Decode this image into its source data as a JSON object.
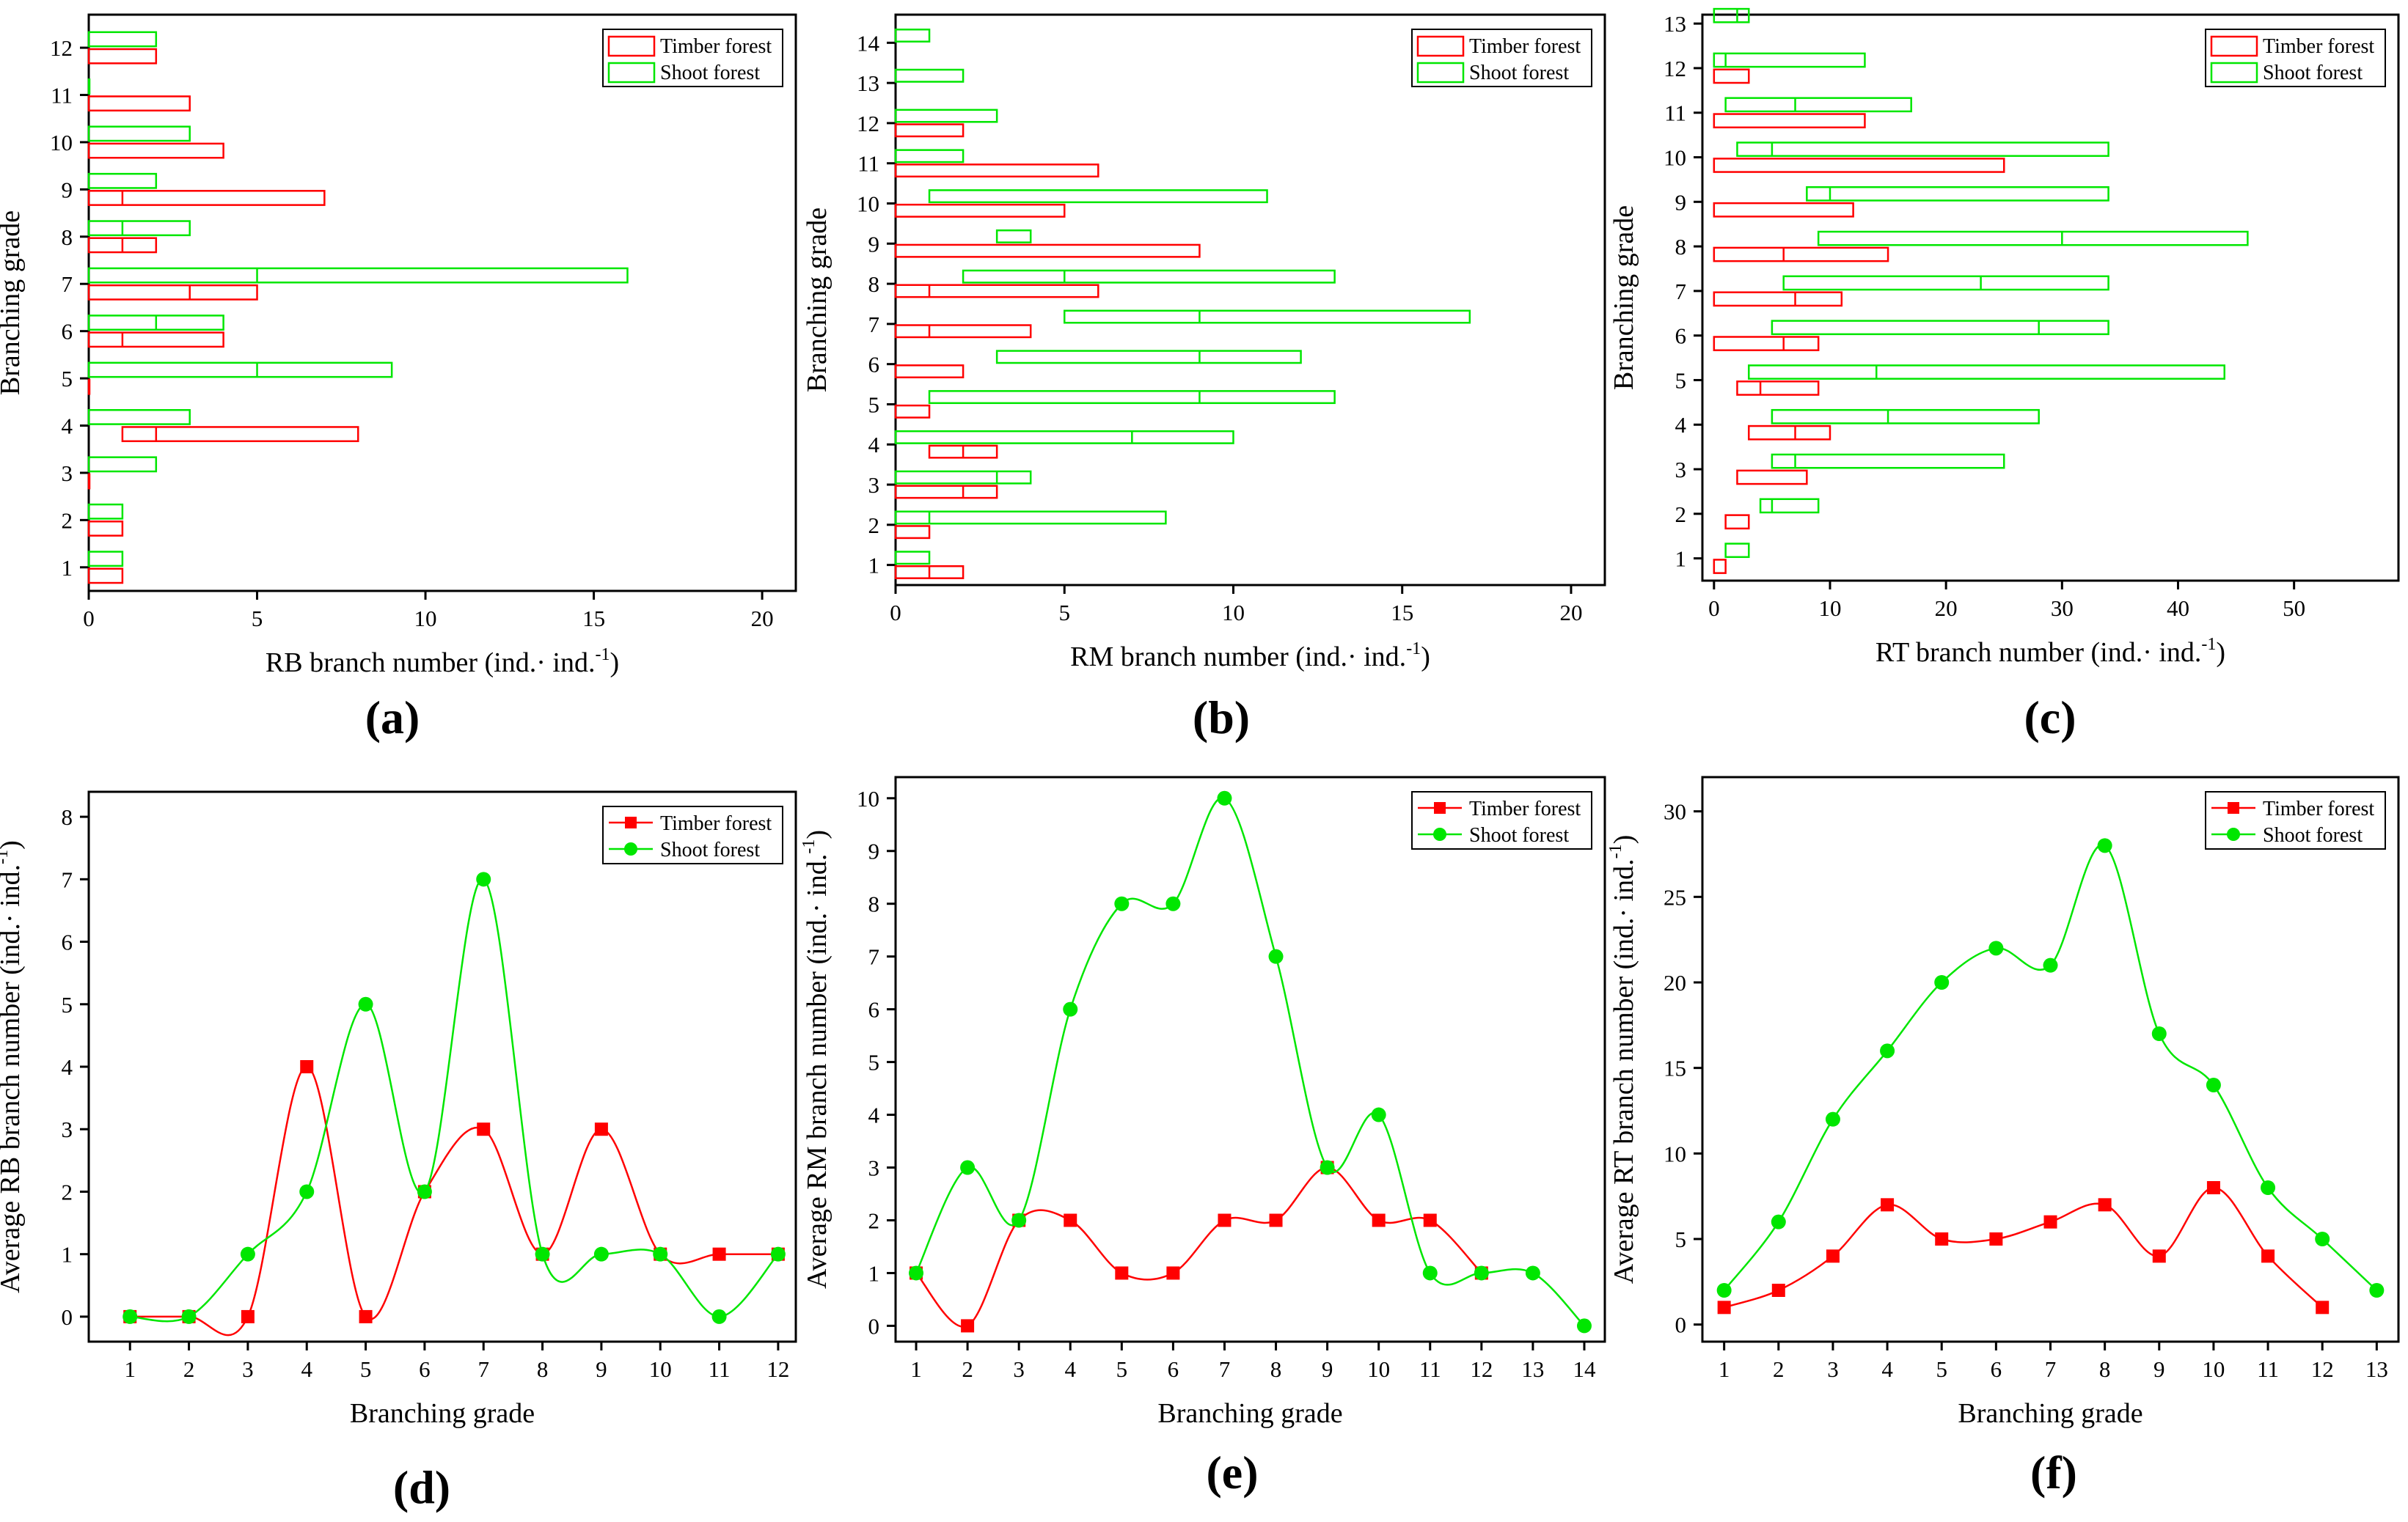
{
  "colors": {
    "timber": "#ff0000",
    "shoot": "#00e600",
    "axis": "#000000"
  },
  "chart_data": [
    {
      "id": "a",
      "type": "range-bar",
      "panel_label": "(a)",
      "xlabel": "RB branch number (ind.· ind.",
      "xlabel_sup": "-1",
      "xlabel_end": ")",
      "ylabel": "Branching grade",
      "xlim": [
        0,
        21
      ],
      "xticks": [
        0,
        5,
        10,
        15,
        20
      ],
      "ylim": [
        0.5,
        12.7
      ],
      "yticks": [
        1,
        2,
        3,
        4,
        5,
        6,
        7,
        8,
        9,
        10,
        11,
        12
      ],
      "legend": [
        "Timber forest",
        "Shoot forest"
      ],
      "series": [
        {
          "name": "Timber forest",
          "bars": [
            {
              "grade": 1,
              "min": 0,
              "median": 0,
              "max": 1
            },
            {
              "grade": 2,
              "min": 0,
              "median": 0,
              "max": 1
            },
            {
              "grade": 3,
              "min": 0,
              "median": 0,
              "max": 0
            },
            {
              "grade": 4,
              "min": 1,
              "median": 2,
              "max": 8
            },
            {
              "grade": 5,
              "min": 0,
              "median": 0,
              "max": 0
            },
            {
              "grade": 6,
              "min": 0,
              "median": 1,
              "max": 4
            },
            {
              "grade": 7,
              "min": 0,
              "median": 3,
              "max": 5
            },
            {
              "grade": 8,
              "min": 0,
              "median": 1,
              "max": 2
            },
            {
              "grade": 9,
              "min": 0,
              "median": 1,
              "max": 7
            },
            {
              "grade": 10,
              "min": 0,
              "median": 0,
              "max": 4
            },
            {
              "grade": 11,
              "min": 0,
              "median": 0,
              "max": 3
            },
            {
              "grade": 12,
              "min": 0,
              "median": 0,
              "max": 2
            }
          ]
        },
        {
          "name": "Shoot forest",
          "bars": [
            {
              "grade": 1,
              "min": 0,
              "median": 0,
              "max": 1
            },
            {
              "grade": 2,
              "min": 0,
              "median": 0,
              "max": 1
            },
            {
              "grade": 3,
              "min": 0,
              "median": 0,
              "max": 2
            },
            {
              "grade": 4,
              "min": 0,
              "median": 0,
              "max": 3
            },
            {
              "grade": 5,
              "min": 0,
              "median": 5,
              "max": 9
            },
            {
              "grade": 6,
              "min": 0,
              "median": 2,
              "max": 4
            },
            {
              "grade": 7,
              "min": 0,
              "median": 5,
              "max": 16
            },
            {
              "grade": 8,
              "min": 0,
              "median": 1,
              "max": 3
            },
            {
              "grade": 9,
              "min": 0,
              "median": 0,
              "max": 2
            },
            {
              "grade": 10,
              "min": 0,
              "median": 0,
              "max": 3
            },
            {
              "grade": 11,
              "min": 0,
              "median": 0,
              "max": 0
            },
            {
              "grade": 12,
              "min": 0,
              "median": 0,
              "max": 2
            }
          ]
        }
      ]
    },
    {
      "id": "b",
      "type": "range-bar",
      "panel_label": "(b)",
      "xlabel": "RM branch number (ind.· ind.",
      "xlabel_sup": "-1",
      "xlabel_end": ")",
      "ylabel": "Branching grade",
      "xlim": [
        0,
        21
      ],
      "xticks": [
        0,
        5,
        10,
        15,
        20
      ],
      "ylim": [
        0.5,
        14.7
      ],
      "yticks": [
        1,
        2,
        3,
        4,
        5,
        6,
        7,
        8,
        9,
        10,
        11,
        12,
        13,
        14
      ],
      "legend": [
        "Timber forest",
        "Shoot forest"
      ],
      "series": [
        {
          "name": "Timber forest",
          "bars": [
            {
              "grade": 1,
              "min": 0,
              "median": 1,
              "max": 2
            },
            {
              "grade": 2,
              "min": 0,
              "median": 0,
              "max": 1
            },
            {
              "grade": 3,
              "min": 0,
              "median": 2,
              "max": 3
            },
            {
              "grade": 4,
              "min": 1,
              "median": 2,
              "max": 3
            },
            {
              "grade": 5,
              "min": 0,
              "median": 0,
              "max": 1
            },
            {
              "grade": 6,
              "min": 0,
              "median": 0,
              "max": 2
            },
            {
              "grade": 7,
              "min": 0,
              "median": 1,
              "max": 4
            },
            {
              "grade": 8,
              "min": 0,
              "median": 1,
              "max": 6
            },
            {
              "grade": 9,
              "min": 0,
              "median": 0,
              "max": 9
            },
            {
              "grade": 10,
              "min": 0,
              "median": 0,
              "max": 5
            },
            {
              "grade": 11,
              "min": 0,
              "median": 0,
              "max": 6
            },
            {
              "grade": 12,
              "min": 0,
              "median": 0,
              "max": 2
            }
          ]
        },
        {
          "name": "Shoot forest",
          "bars": [
            {
              "grade": 1,
              "min": 0,
              "median": 0,
              "max": 1
            },
            {
              "grade": 2,
              "min": 0,
              "median": 1,
              "max": 8
            },
            {
              "grade": 3,
              "min": 0,
              "median": 3,
              "max": 4
            },
            {
              "grade": 4,
              "min": 0,
              "median": 7,
              "max": 10
            },
            {
              "grade": 5,
              "min": 1,
              "median": 9,
              "max": 13
            },
            {
              "grade": 6,
              "min": 3,
              "median": 9,
              "max": 12
            },
            {
              "grade": 7,
              "min": 5,
              "median": 9,
              "max": 17
            },
            {
              "grade": 8,
              "min": 2,
              "median": 5,
              "max": 13
            },
            {
              "grade": 9,
              "min": 3,
              "median": 3,
              "max": 4
            },
            {
              "grade": 10,
              "min": 1,
              "median": 1,
              "max": 11
            },
            {
              "grade": 11,
              "min": 0,
              "median": 0,
              "max": 2
            },
            {
              "grade": 12,
              "min": 0,
              "median": 0,
              "max": 3
            },
            {
              "grade": 13,
              "min": 0,
              "median": 0,
              "max": 2
            },
            {
              "grade": 14,
              "min": 0,
              "median": 0,
              "max": 1
            }
          ]
        }
      ]
    },
    {
      "id": "c",
      "type": "range-bar",
      "panel_label": "(c)",
      "xlabel": "RT branch number (ind.· ind.",
      "xlabel_sup": "-1",
      "xlabel_end": ")",
      "ylabel": "Branching grade",
      "xlim": [
        -1,
        59
      ],
      "xticks": [
        0,
        10,
        20,
        30,
        40,
        50
      ],
      "ylim": [
        0.5,
        13.2
      ],
      "yticks": [
        1,
        2,
        3,
        4,
        5,
        6,
        7,
        8,
        9,
        10,
        11,
        12,
        13
      ],
      "legend": [
        "Timber forest",
        "Shoot forest"
      ],
      "series": [
        {
          "name": "Timber forest",
          "bars": [
            {
              "grade": 1,
              "min": 0,
              "median": 0,
              "max": 1
            },
            {
              "grade": 2,
              "min": 1,
              "median": 1,
              "max": 3
            },
            {
              "grade": 3,
              "min": 2,
              "median": 2,
              "max": 8
            },
            {
              "grade": 4,
              "min": 3,
              "median": 7,
              "max": 10
            },
            {
              "grade": 5,
              "min": 2,
              "median": 4,
              "max": 9
            },
            {
              "grade": 6,
              "min": 0,
              "median": 6,
              "max": 9
            },
            {
              "grade": 7,
              "min": 0,
              "median": 7,
              "max": 11
            },
            {
              "grade": 8,
              "min": 0,
              "median": 6,
              "max": 15
            },
            {
              "grade": 9,
              "min": 0,
              "median": 0,
              "max": 12
            },
            {
              "grade": 10,
              "min": 0,
              "median": 0,
              "max": 25
            },
            {
              "grade": 11,
              "min": 0,
              "median": 0,
              "max": 13
            },
            {
              "grade": 12,
              "min": 0,
              "median": 0,
              "max": 3
            }
          ]
        },
        {
          "name": "Shoot forest",
          "bars": [
            {
              "grade": 1,
              "min": 1,
              "median": 1,
              "max": 3
            },
            {
              "grade": 2,
              "min": 4,
              "median": 5,
              "max": 9
            },
            {
              "grade": 3,
              "min": 5,
              "median": 7,
              "max": 25
            },
            {
              "grade": 4,
              "min": 5,
              "median": 15,
              "max": 28
            },
            {
              "grade": 5,
              "min": 3,
              "median": 14,
              "max": 44
            },
            {
              "grade": 6,
              "min": 5,
              "median": 28,
              "max": 34
            },
            {
              "grade": 7,
              "min": 6,
              "median": 23,
              "max": 34
            },
            {
              "grade": 8,
              "min": 9,
              "median": 30,
              "max": 46
            },
            {
              "grade": 9,
              "min": 8,
              "median": 10,
              "max": 34
            },
            {
              "grade": 10,
              "min": 2,
              "median": 5,
              "max": 34
            },
            {
              "grade": 11,
              "min": 1,
              "median": 7,
              "max": 17
            },
            {
              "grade": 12,
              "min": 0,
              "median": 1,
              "max": 13
            },
            {
              "grade": 13,
              "min": 0,
              "median": 2,
              "max": 3
            }
          ]
        }
      ]
    },
    {
      "id": "d",
      "type": "line",
      "panel_label": "(d)",
      "xlabel": "Branching grade",
      "ylabel": "Average RB branch number (ind.· ind.",
      "ylabel_sup": "-1",
      "ylabel_end": ")",
      "xlim": [
        0.3,
        12.3
      ],
      "xticks": [
        1,
        2,
        3,
        4,
        5,
        6,
        7,
        8,
        9,
        10,
        11,
        12
      ],
      "ylim": [
        -0.4,
        8.4
      ],
      "yticks": [
        0,
        1,
        2,
        3,
        4,
        5,
        6,
        7,
        8
      ],
      "legend": [
        "Timber forest",
        "Shoot forest"
      ],
      "series": [
        {
          "name": "Timber forest",
          "x": [
            1,
            2,
            3,
            4,
            5,
            6,
            7,
            8,
            9,
            10,
            11,
            12
          ],
          "values": [
            0,
            0,
            0,
            4,
            0,
            2,
            3,
            1,
            3,
            1,
            1,
            1
          ]
        },
        {
          "name": "Shoot forest",
          "x": [
            1,
            2,
            3,
            4,
            5,
            6,
            7,
            8,
            9,
            10,
            11,
            12
          ],
          "values": [
            0,
            0,
            1,
            2,
            5,
            2,
            7,
            1,
            1,
            1,
            0,
            1
          ]
        }
      ]
    },
    {
      "id": "e",
      "type": "line",
      "panel_label": "(e)",
      "xlabel": "Branching grade",
      "ylabel": "Average RM branch number (ind.· ind.",
      "ylabel_sup": "-1",
      "ylabel_end": ")",
      "xlim": [
        0.6,
        14.4
      ],
      "xticks": [
        1,
        2,
        3,
        4,
        5,
        6,
        7,
        8,
        9,
        10,
        11,
        12,
        13,
        14
      ],
      "ylim": [
        -0.3,
        10.4
      ],
      "yticks": [
        0,
        1,
        2,
        3,
        4,
        5,
        6,
        7,
        8,
        9,
        10
      ],
      "legend": [
        "Timber forest",
        "Shoot forest"
      ],
      "series": [
        {
          "name": "Timber forest",
          "x": [
            1,
            2,
            3,
            4,
            5,
            6,
            7,
            8,
            9,
            10,
            11,
            12
          ],
          "values": [
            1,
            0,
            2,
            2,
            1,
            1,
            2,
            2,
            3,
            2,
            2,
            1
          ]
        },
        {
          "name": "Shoot forest",
          "x": [
            1,
            2,
            3,
            4,
            5,
            6,
            7,
            8,
            9,
            10,
            11,
            12,
            13,
            14
          ],
          "values": [
            1,
            3,
            2,
            6,
            8,
            8,
            10,
            7,
            3,
            4,
            1,
            1,
            1,
            0
          ]
        }
      ]
    },
    {
      "id": "f",
      "type": "line",
      "panel_label": "(f)",
      "xlabel": "Branching grade",
      "ylabel": "Average RT branch number (ind.· ind.",
      "ylabel_sup": "-1",
      "ylabel_end": ")",
      "xlim": [
        0.6,
        13.4
      ],
      "xticks": [
        1,
        2,
        3,
        4,
        5,
        6,
        7,
        8,
        9,
        10,
        11,
        12,
        13
      ],
      "ylim": [
        -1,
        32
      ],
      "yticks": [
        0,
        5,
        10,
        15,
        20,
        25,
        30
      ],
      "legend": [
        "Timber forest",
        "Shoot forest"
      ],
      "series": [
        {
          "name": "Timber forest",
          "x": [
            1,
            2,
            3,
            4,
            5,
            6,
            7,
            8,
            9,
            10,
            11,
            12
          ],
          "values": [
            1,
            2,
            4,
            7,
            5,
            5,
            6,
            7,
            4,
            8,
            4,
            1
          ]
        },
        {
          "name": "Shoot forest",
          "x": [
            1,
            2,
            3,
            4,
            5,
            6,
            7,
            8,
            9,
            10,
            11,
            12,
            13
          ],
          "values": [
            2,
            6,
            12,
            16,
            20,
            22,
            21,
            28,
            17,
            14,
            8,
            5,
            2
          ]
        }
      ]
    }
  ]
}
